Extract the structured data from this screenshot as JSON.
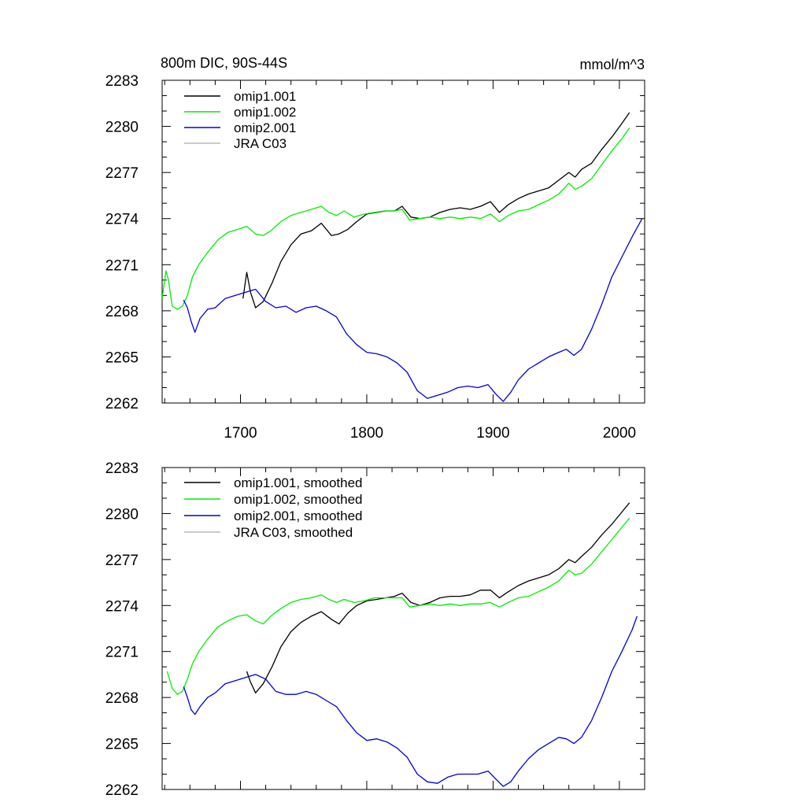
{
  "chart_data": [
    {
      "type": "line",
      "title": "800m DIC, 90S-44S",
      "units_label": "mmol/m^3",
      "xlim": [
        1638,
        2020
      ],
      "ylim": [
        2262,
        2283
      ],
      "x_ticks": [
        1700,
        1800,
        1900,
        2000
      ],
      "x_tick_labels": [
        "1700",
        "1800",
        "1900",
        "2000"
      ],
      "y_ticks": [
        2262,
        2265,
        2268,
        2271,
        2274,
        2277,
        2280,
        2283
      ],
      "y_tick_labels": [
        "2262",
        "2265",
        "2268",
        "2271",
        "2274",
        "2277",
        "2280",
        "2283"
      ],
      "grid": false,
      "legend_position": "top-left",
      "series": [
        {
          "name": "omip1.001",
          "color": "#000000",
          "x": [
            1702,
            1705,
            1708,
            1712,
            1718,
            1725,
            1732,
            1740,
            1748,
            1756,
            1764,
            1772,
            1778,
            1785,
            1792,
            1800,
            1808,
            1815,
            1822,
            1828,
            1835,
            1842,
            1850,
            1858,
            1866,
            1874,
            1882,
            1890,
            1898,
            1905,
            1912,
            1920,
            1928,
            1936,
            1944,
            1952,
            1960,
            1965,
            1970,
            1978,
            1986,
            1994,
            2002,
            2008
          ],
          "y": [
            2268.8,
            2270.5,
            2269.2,
            2268.2,
            2268.6,
            2269.8,
            2271.2,
            2272.3,
            2273.0,
            2273.2,
            2273.7,
            2272.9,
            2273.0,
            2273.3,
            2273.8,
            2274.3,
            2274.4,
            2274.5,
            2274.5,
            2274.8,
            2274.1,
            2274.0,
            2274.1,
            2274.4,
            2274.6,
            2274.7,
            2274.6,
            2274.8,
            2275.1,
            2274.4,
            2274.9,
            2275.3,
            2275.6,
            2275.8,
            2276.0,
            2276.5,
            2277.0,
            2276.7,
            2277.2,
            2277.6,
            2278.5,
            2279.3,
            2280.2,
            2280.9
          ]
        },
        {
          "name": "omip1.002",
          "color": "#00ee00",
          "x": [
            1638,
            1641,
            1643,
            1646,
            1650,
            1654,
            1658,
            1662,
            1667,
            1674,
            1682,
            1690,
            1698,
            1705,
            1712,
            1718,
            1724,
            1732,
            1740,
            1748,
            1756,
            1764,
            1770,
            1776,
            1782,
            1790,
            1798,
            1806,
            1814,
            1822,
            1828,
            1834,
            1842,
            1850,
            1858,
            1866,
            1874,
            1882,
            1890,
            1898,
            1905,
            1912,
            1920,
            1928,
            1936,
            1944,
            1952,
            1960,
            1965,
            1970,
            1978,
            1986,
            1994,
            2002,
            2008
          ],
          "y": [
            2268.8,
            2270.6,
            2270.0,
            2268.3,
            2268.1,
            2268.3,
            2269.0,
            2270.2,
            2271.0,
            2271.8,
            2272.6,
            2273.1,
            2273.3,
            2273.5,
            2273.0,
            2272.9,
            2273.2,
            2273.8,
            2274.2,
            2274.4,
            2274.6,
            2274.8,
            2274.4,
            2274.2,
            2274.5,
            2274.1,
            2274.3,
            2274.4,
            2274.5,
            2274.5,
            2274.6,
            2273.9,
            2274.0,
            2274.1,
            2274.0,
            2274.1,
            2274.0,
            2274.1,
            2274.0,
            2274.3,
            2273.8,
            2274.2,
            2274.5,
            2274.6,
            2274.9,
            2275.2,
            2275.6,
            2276.3,
            2275.9,
            2276.1,
            2276.6,
            2277.5,
            2278.4,
            2279.2,
            2279.9
          ]
        },
        {
          "name": "omip2.001",
          "color": "#0000dd",
          "x": [
            1655,
            1658,
            1661,
            1664,
            1668,
            1674,
            1680,
            1688,
            1696,
            1704,
            1712,
            1720,
            1728,
            1736,
            1744,
            1752,
            1760,
            1768,
            1776,
            1784,
            1792,
            1800,
            1808,
            1816,
            1824,
            1832,
            1840,
            1848,
            1856,
            1864,
            1872,
            1880,
            1888,
            1896,
            1902,
            1908,
            1914,
            1920,
            1928,
            1936,
            1944,
            1952,
            1958,
            1964,
            1970,
            1978,
            1986,
            1994,
            2002,
            2010,
            2018
          ],
          "y": [
            2268.7,
            2268.2,
            2267.3,
            2266.6,
            2267.5,
            2268.1,
            2268.2,
            2268.8,
            2269.0,
            2269.2,
            2269.4,
            2268.6,
            2268.2,
            2268.3,
            2267.9,
            2268.2,
            2268.3,
            2268.0,
            2267.6,
            2266.5,
            2265.8,
            2265.3,
            2265.2,
            2265.0,
            2264.6,
            2264.0,
            2262.8,
            2262.3,
            2262.5,
            2262.7,
            2263.0,
            2263.1,
            2263.0,
            2263.2,
            2262.6,
            2262.1,
            2262.7,
            2263.5,
            2264.2,
            2264.6,
            2265.0,
            2265.3,
            2265.5,
            2265.1,
            2265.5,
            2266.8,
            2268.4,
            2270.2,
            2271.5,
            2272.8,
            2274.0
          ]
        },
        {
          "name": "JRA C03",
          "color": "#b8b8b8",
          "x": [],
          "y": []
        }
      ]
    },
    {
      "type": "line",
      "title": "",
      "units_label": "",
      "xlim": [
        1638,
        2020
      ],
      "ylim": [
        2262,
        2283
      ],
      "x_ticks": [
        1700,
        1800,
        1900,
        2000
      ],
      "x_tick_labels": [],
      "y_ticks": [
        2262,
        2265,
        2268,
        2271,
        2274,
        2277,
        2280,
        2283
      ],
      "y_tick_labels": [
        "2262",
        "2265",
        "2268",
        "2271",
        "2274",
        "2277",
        "2280",
        "2283"
      ],
      "grid": false,
      "legend_position": "top-left",
      "series": [
        {
          "name": "omip1.001, smoothed",
          "color": "#000000",
          "x": [
            1705,
            1708,
            1712,
            1718,
            1725,
            1732,
            1740,
            1748,
            1756,
            1764,
            1772,
            1778,
            1785,
            1792,
            1800,
            1808,
            1815,
            1822,
            1828,
            1835,
            1842,
            1850,
            1858,
            1866,
            1874,
            1882,
            1890,
            1898,
            1905,
            1912,
            1920,
            1928,
            1936,
            1944,
            1952,
            1960,
            1965,
            1970,
            1978,
            1986,
            1994,
            2002,
            2008
          ],
          "y": [
            2269.7,
            2269.0,
            2268.3,
            2268.9,
            2270.0,
            2271.3,
            2272.3,
            2272.9,
            2273.3,
            2273.6,
            2273.1,
            2272.8,
            2273.5,
            2274.0,
            2274.3,
            2274.4,
            2274.5,
            2274.6,
            2274.8,
            2274.2,
            2274.0,
            2274.2,
            2274.5,
            2274.6,
            2274.6,
            2274.7,
            2275.0,
            2275.0,
            2274.5,
            2274.9,
            2275.3,
            2275.6,
            2275.8,
            2276.0,
            2276.4,
            2277.0,
            2276.8,
            2277.2,
            2277.8,
            2278.6,
            2279.3,
            2280.1,
            2280.7
          ]
        },
        {
          "name": "omip1.002, smoothed",
          "color": "#00ee00",
          "x": [
            1642,
            1646,
            1650,
            1654,
            1658,
            1662,
            1667,
            1674,
            1682,
            1690,
            1698,
            1705,
            1712,
            1718,
            1724,
            1732,
            1740,
            1748,
            1756,
            1764,
            1770,
            1776,
            1782,
            1790,
            1798,
            1806,
            1814,
            1822,
            1828,
            1834,
            1842,
            1850,
            1858,
            1866,
            1874,
            1882,
            1890,
            1898,
            1905,
            1912,
            1920,
            1928,
            1936,
            1944,
            1952,
            1960,
            1965,
            1970,
            1978,
            1986,
            1994,
            2002,
            2008
          ],
          "y": [
            2269.7,
            2268.6,
            2268.2,
            2268.4,
            2269.2,
            2270.2,
            2271.0,
            2271.8,
            2272.6,
            2273.0,
            2273.3,
            2273.4,
            2273.0,
            2272.8,
            2273.3,
            2273.8,
            2274.2,
            2274.4,
            2274.5,
            2274.7,
            2274.4,
            2274.2,
            2274.4,
            2274.2,
            2274.3,
            2274.5,
            2274.5,
            2274.5,
            2274.5,
            2273.9,
            2274.0,
            2274.1,
            2274.0,
            2274.1,
            2274.0,
            2274.1,
            2274.1,
            2274.2,
            2273.9,
            2274.2,
            2274.5,
            2274.6,
            2274.9,
            2275.2,
            2275.6,
            2276.3,
            2276.0,
            2276.1,
            2276.7,
            2277.5,
            2278.3,
            2279.1,
            2279.7
          ]
        },
        {
          "name": "omip2.001, smoothed",
          "color": "#0000dd",
          "x": [
            1655,
            1658,
            1661,
            1664,
            1668,
            1674,
            1680,
            1688,
            1696,
            1704,
            1712,
            1720,
            1728,
            1736,
            1744,
            1752,
            1760,
            1768,
            1776,
            1784,
            1792,
            1800,
            1808,
            1816,
            1824,
            1832,
            1840,
            1848,
            1856,
            1864,
            1872,
            1880,
            1888,
            1896,
            1902,
            1908,
            1914,
            1920,
            1928,
            1936,
            1944,
            1952,
            1958,
            1964,
            1970,
            1978,
            1986,
            1994,
            2002,
            2010,
            2014
          ],
          "y": [
            2268.7,
            2268.0,
            2267.2,
            2266.9,
            2267.4,
            2268.0,
            2268.3,
            2268.9,
            2269.1,
            2269.3,
            2269.5,
            2269.2,
            2268.4,
            2268.2,
            2268.2,
            2268.4,
            2268.2,
            2267.8,
            2267.4,
            2266.5,
            2265.7,
            2265.2,
            2265.3,
            2265.1,
            2264.7,
            2264.1,
            2263.0,
            2262.5,
            2262.4,
            2262.8,
            2263.0,
            2263.0,
            2263.0,
            2263.2,
            2262.7,
            2262.2,
            2262.5,
            2263.2,
            2264.0,
            2264.6,
            2265.0,
            2265.4,
            2265.3,
            2265.0,
            2265.4,
            2266.5,
            2268.0,
            2269.7,
            2271.0,
            2272.4,
            2273.3
          ]
        },
        {
          "name": "JRA C03, smoothed",
          "color": "#b8b8b8",
          "x": [],
          "y": []
        }
      ]
    }
  ]
}
